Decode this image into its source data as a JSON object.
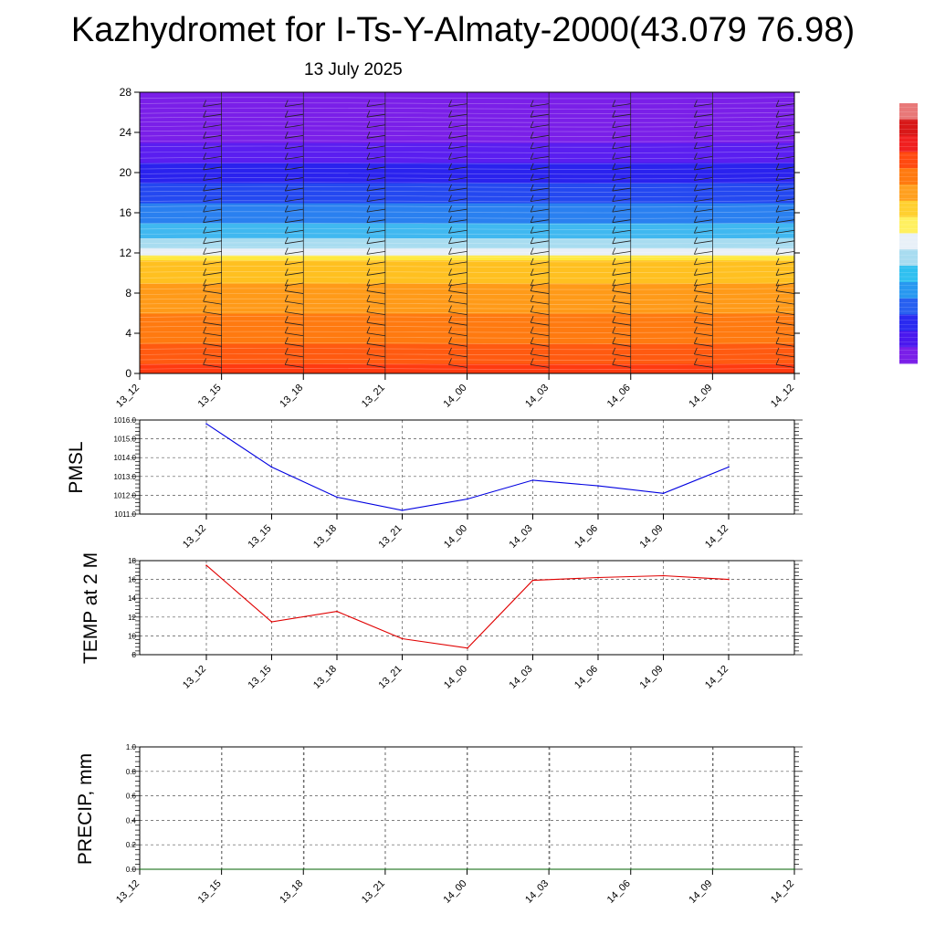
{
  "title": "Kazhydromet for I-Ts-Y-Almaty-2000(43.079 76.98)",
  "subtitle": "13 July 2025",
  "colorbar": {
    "colors": [
      "#7a1fe8",
      "#4a18ee",
      "#2a2af0",
      "#2860f0",
      "#2898f0",
      "#30c0f0",
      "#a8dcf0",
      "#e8f0f8",
      "#fff060",
      "#ffd030",
      "#ffa020",
      "#ff7a10",
      "#ff4a10",
      "#f02020",
      "#d81818",
      "#e87878"
    ]
  },
  "chart_data": [
    {
      "id": "profile",
      "type": "heatmap",
      "x_categories": [
        "13_12",
        "13_15",
        "13_18",
        "13_21",
        "14_00",
        "14_03",
        "14_06",
        "14_09",
        "14_12"
      ],
      "ylim": [
        0,
        28
      ],
      "y_ticks": [
        "0",
        "4",
        "8",
        "12",
        "16",
        "20",
        "24",
        "28"
      ],
      "color_bands": [
        {
          "from": 0,
          "to": 1,
          "color": "#ff3a10"
        },
        {
          "from": 1,
          "to": 3,
          "color": "#ff5a10"
        },
        {
          "from": 3,
          "to": 6,
          "color": "#ff7a10"
        },
        {
          "from": 6,
          "to": 9,
          "color": "#ff9a18"
        },
        {
          "from": 9,
          "to": 11.3,
          "color": "#ffc020"
        },
        {
          "from": 11.3,
          "to": 11.8,
          "color": "#ffe840"
        },
        {
          "from": 11.8,
          "to": 12.5,
          "color": "#e8f0f8"
        },
        {
          "from": 12.5,
          "to": 13.5,
          "color": "#a8dcf0"
        },
        {
          "from": 13.5,
          "to": 15,
          "color": "#40b8f0"
        },
        {
          "from": 15,
          "to": 17,
          "color": "#2a80f0"
        },
        {
          "from": 17,
          "to": 19,
          "color": "#2448f0"
        },
        {
          "from": 19,
          "to": 21,
          "color": "#2a22ee"
        },
        {
          "from": 21,
          "to": 23,
          "color": "#5a1ef0"
        },
        {
          "from": 23,
          "to": 28,
          "color": "#7a1fe8"
        }
      ]
    },
    {
      "id": "pmsl",
      "type": "line",
      "ylabel": "PMSL",
      "x_categories": [
        "13_12",
        "13_15",
        "13_18",
        "13_21",
        "14_00",
        "14_03",
        "14_06",
        "14_09",
        "14_12"
      ],
      "values": [
        1015.8,
        1013.5,
        1011.9,
        1011.2,
        1011.8,
        1012.8,
        1012.5,
        1012.1,
        1013.5
      ],
      "ylim": [
        1011.0,
        1016.0
      ],
      "y_ticks": [
        "1011.0",
        "1012.0",
        "1013.0",
        "1014.0",
        "1015.0",
        "1016.0"
      ],
      "color": "#0000e0"
    },
    {
      "id": "temp",
      "type": "line",
      "ylabel": "TEMP at 2 M",
      "x_categories": [
        "13_12",
        "13_15",
        "13_18",
        "13_21",
        "14_00",
        "14_03",
        "14_06",
        "14_09",
        "14_12"
      ],
      "values": [
        17.5,
        11.5,
        12.6,
        9.7,
        8.7,
        15.9,
        16.2,
        16.4,
        16.0
      ],
      "ylim": [
        8,
        18
      ],
      "y_ticks": [
        "8",
        "10",
        "12",
        "14",
        "16",
        "18"
      ],
      "color": "#e00000"
    },
    {
      "id": "precip",
      "type": "line",
      "ylabel": "PRECIP, mm",
      "x_categories": [
        "13_12",
        "13_15",
        "13_18",
        "13_21",
        "14_00",
        "14_03",
        "14_06",
        "14_09",
        "14_12"
      ],
      "values": [
        0,
        0,
        0,
        0,
        0,
        0,
        0,
        0,
        0
      ],
      "ylim": [
        0,
        1.0
      ],
      "y_ticks": [
        "0.0",
        "0.2",
        "0.4",
        "0.6",
        "0.8",
        "1.0"
      ],
      "color": "#006000"
    }
  ]
}
